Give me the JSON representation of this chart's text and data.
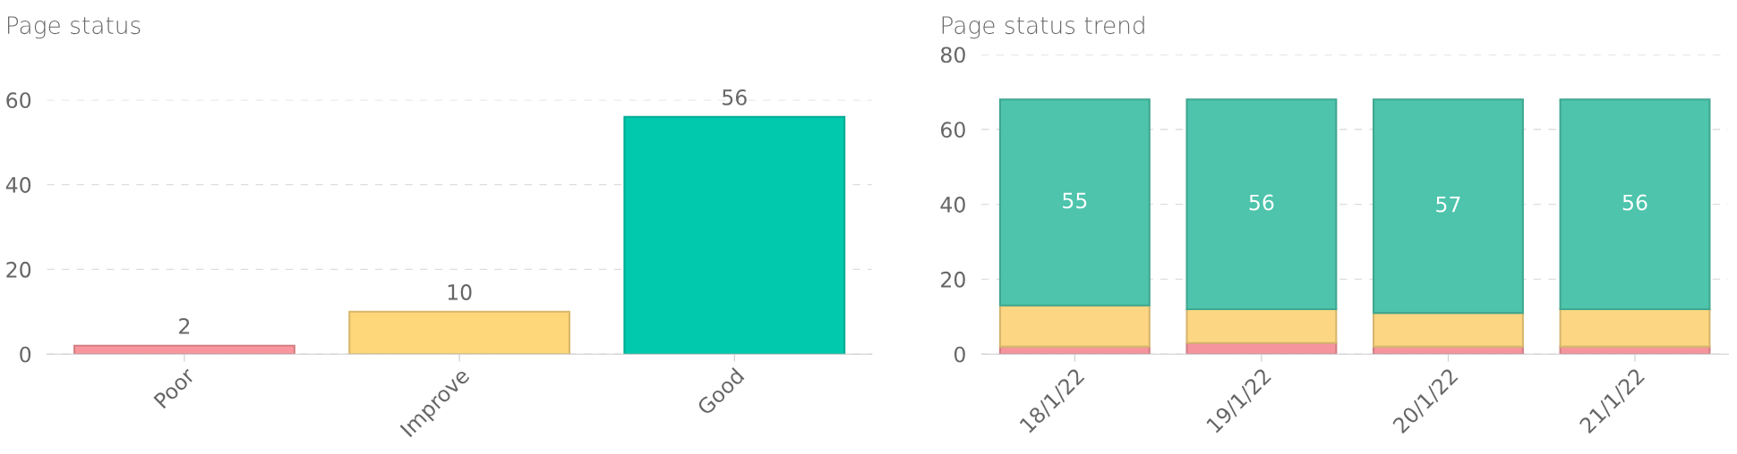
{
  "chart_data": [
    {
      "type": "bar",
      "title": "Page status",
      "categories": [
        "Poor",
        "Improve",
        "Good"
      ],
      "values": [
        2,
        10,
        56
      ],
      "colors": [
        "#f9959c",
        "#fed77b",
        "#00c9ad"
      ],
      "ylim": [
        0,
        60
      ],
      "yticks": [
        0,
        20,
        40,
        60
      ],
      "grid": "y",
      "data_labels": true
    },
    {
      "type": "bar",
      "title": "Page status trend",
      "stacked": true,
      "categories": [
        "18/1/22",
        "19/1/22",
        "20/1/22",
        "21/1/22"
      ],
      "ylim": [
        0,
        80
      ],
      "yticks": [
        0,
        20,
        40,
        60,
        80
      ],
      "grid": "y",
      "series": [
        {
          "color": "#f5949c",
          "values": [
            2,
            3,
            2,
            2
          ]
        },
        {
          "color": "#fcd682",
          "values": [
            11,
            9,
            9,
            10
          ]
        },
        {
          "color": "#4dc4ab",
          "values": [
            55,
            56,
            57,
            56
          ],
          "value_labels": [
            "55",
            "56",
            "57",
            "56"
          ]
        }
      ]
    }
  ]
}
